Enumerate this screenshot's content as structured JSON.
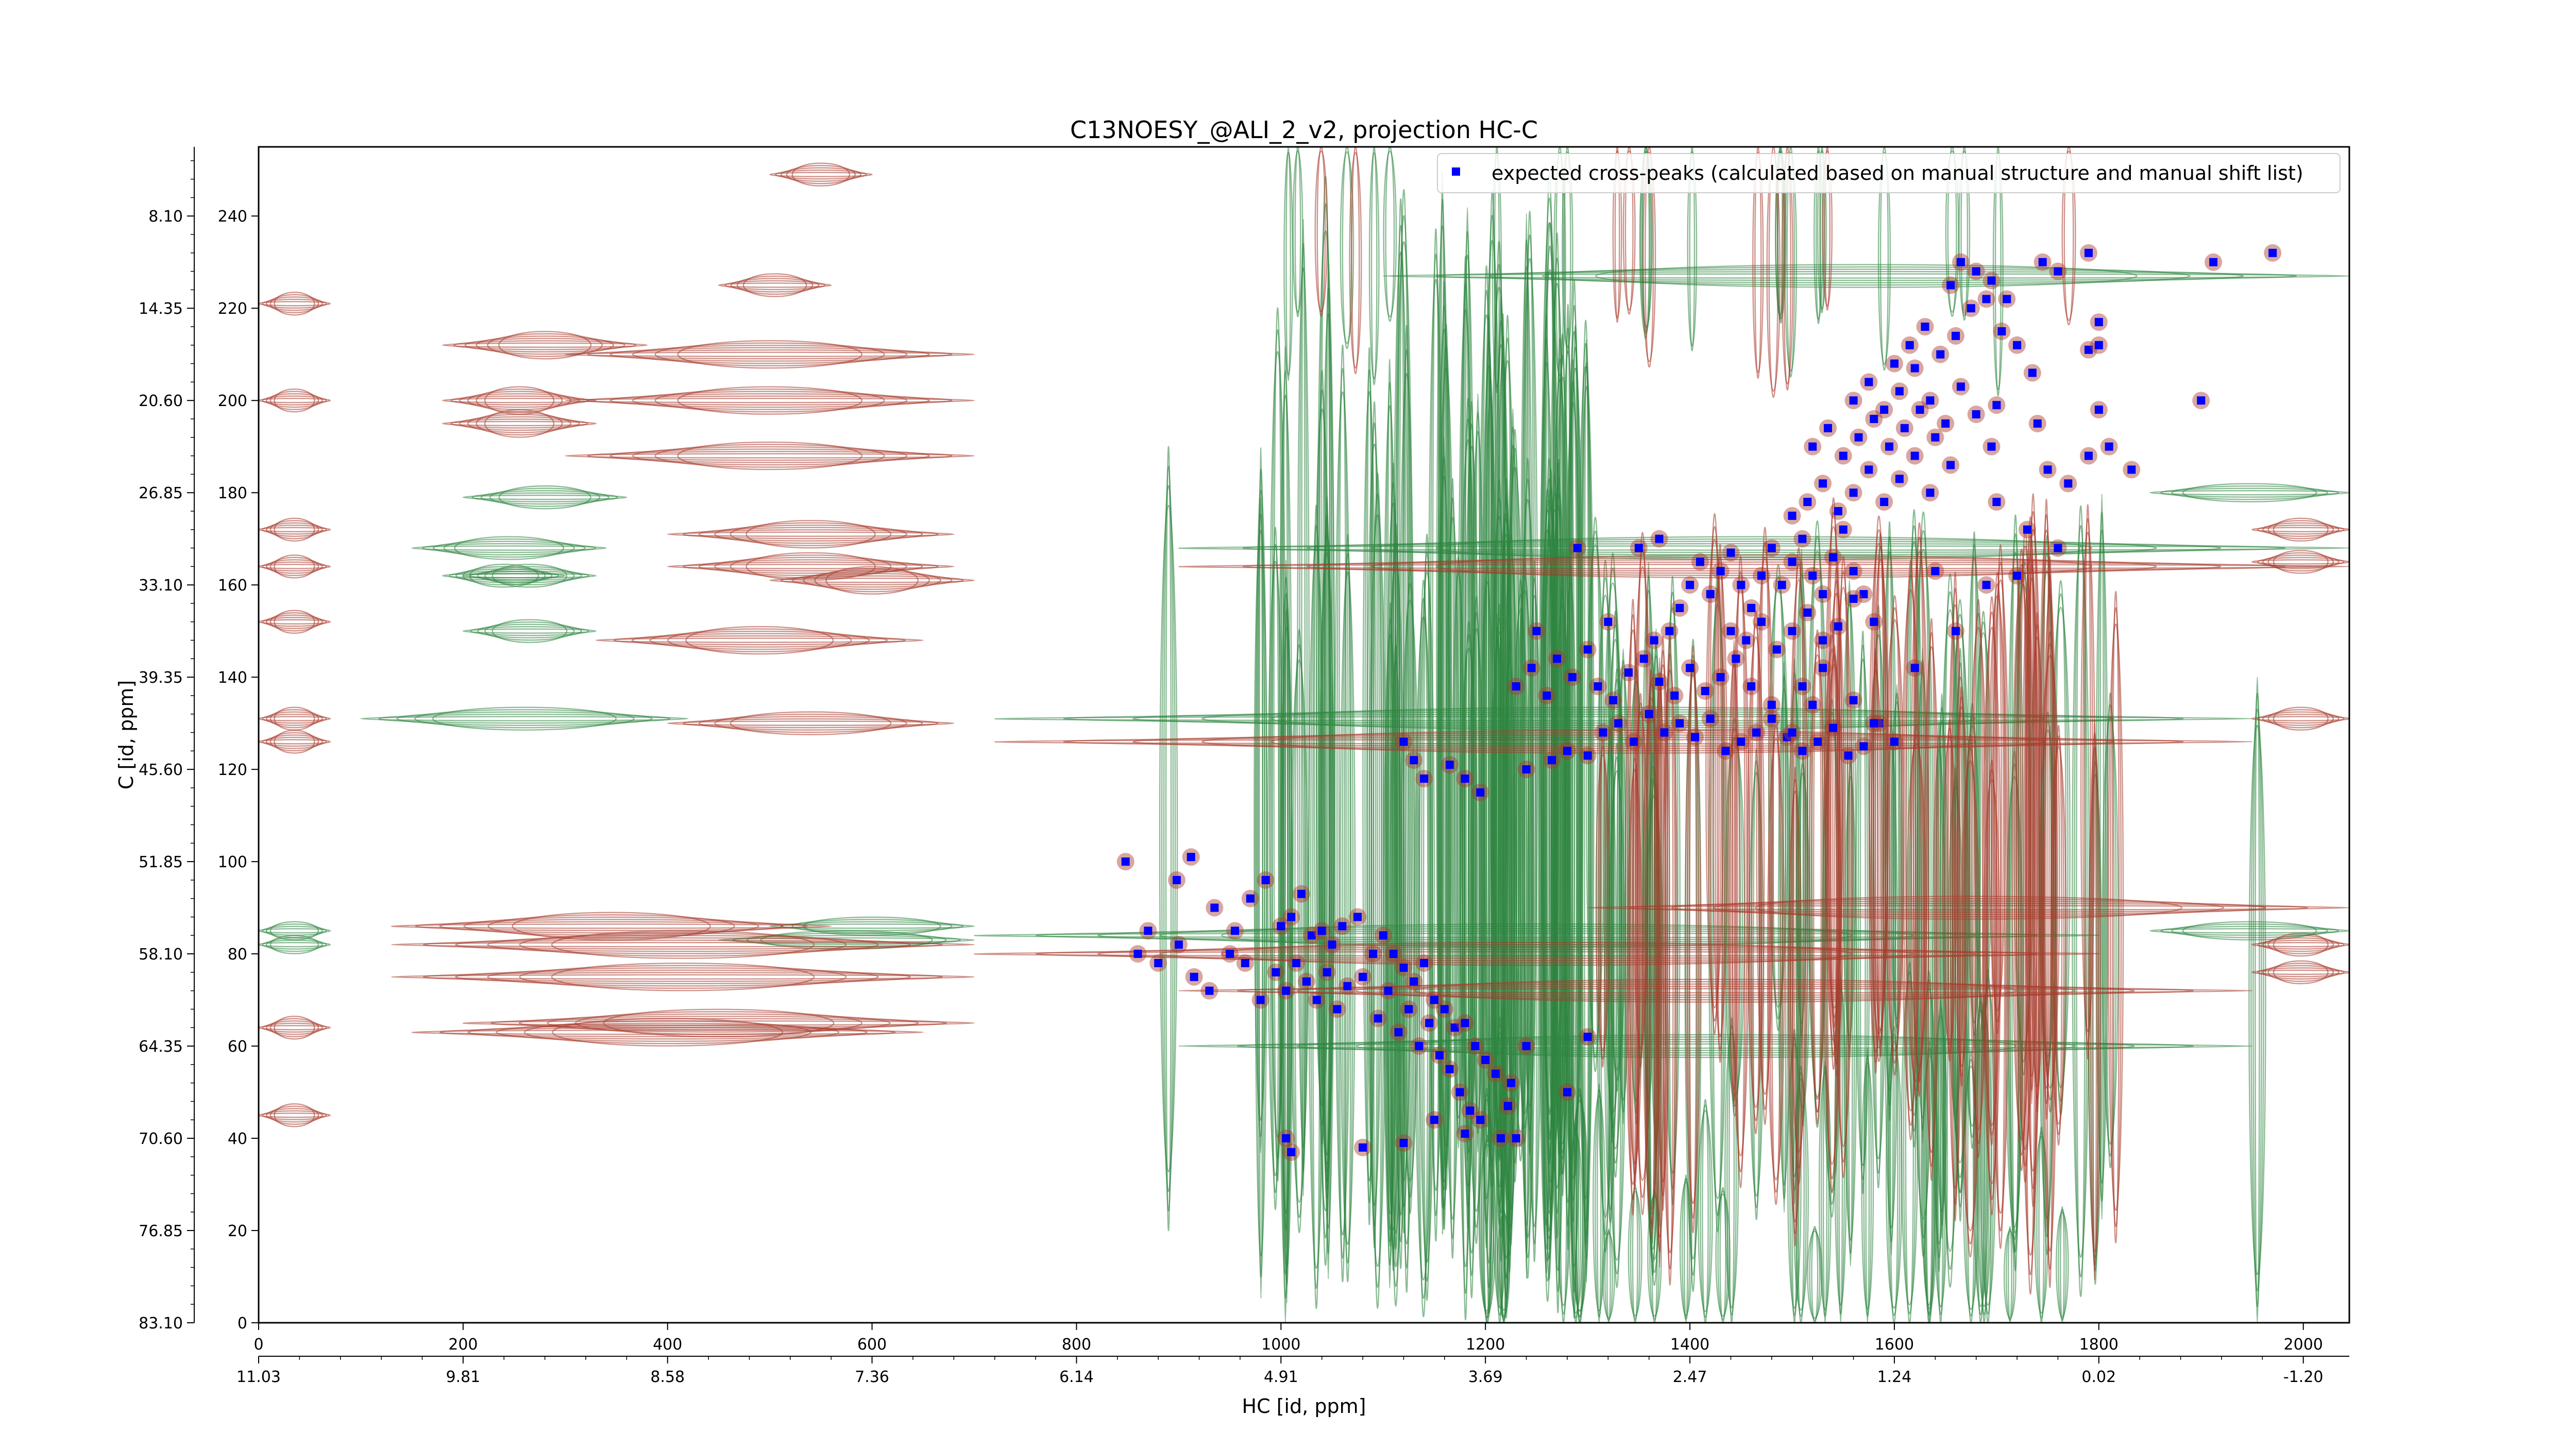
{
  "chart_data": {
    "type": "scatter",
    "title": "C13NOESY_@ALI_2_v2, projection HC-C",
    "xlabel": "HC [id, ppm]",
    "ylabel": "C [id, ppm]",
    "x_index_ticks": [
      "0",
      "200",
      "400",
      "600",
      "800",
      "1000",
      "1200",
      "1400",
      "1600",
      "1800",
      "2000"
    ],
    "x_index_range": [
      0,
      2045
    ],
    "x_ppm_ticks": [
      "11.03",
      "9.81",
      "8.58",
      "7.36",
      "6.14",
      "4.91",
      "3.69",
      "2.47",
      "1.24",
      "0.02",
      "-1.20"
    ],
    "y_index_ticks": [
      "0",
      "20",
      "40",
      "60",
      "80",
      "100",
      "120",
      "140",
      "160",
      "180",
      "200",
      "220",
      "240"
    ],
    "y_index_range": [
      0,
      255
    ],
    "y_ppm_ticks": [
      "83.10",
      "76.85",
      "70.60",
      "64.35",
      "58.10",
      "51.85",
      "45.60",
      "39.35",
      "33.10",
      "26.85",
      "20.60",
      "14.35",
      "8.10"
    ],
    "legend": {
      "label": "expected cross-peaks (calculated based on manual structure and manual shift list)",
      "placement": "top-right",
      "marker_color": "#0000ff"
    },
    "contour_colors": {
      "positive": "#a83b2c",
      "negative": "#2e8540"
    },
    "series": [
      {
        "label": "expected cross-peaks (calculated based on manual structure and manual shift list)",
        "points": [
          [
            848,
            100
          ],
          [
            898,
            96
          ],
          [
            912,
            101
          ],
          [
            935,
            90
          ],
          [
            950,
            80
          ],
          [
            970,
            92
          ],
          [
            985,
            96
          ],
          [
            1000,
            86
          ],
          [
            1010,
            88
          ],
          [
            1020,
            93
          ],
          [
            1030,
            84
          ],
          [
            1040,
            85
          ],
          [
            1050,
            82
          ],
          [
            1060,
            86
          ],
          [
            1075,
            88
          ],
          [
            1090,
            80
          ],
          [
            1100,
            84
          ],
          [
            1110,
            80
          ],
          [
            1120,
            77
          ],
          [
            1130,
            74
          ],
          [
            1140,
            78
          ],
          [
            1150,
            70
          ],
          [
            1160,
            68
          ],
          [
            1170,
            64
          ],
          [
            1180,
            65
          ],
          [
            1190,
            60
          ],
          [
            1200,
            57
          ],
          [
            1210,
            54
          ],
          [
            1225,
            52
          ],
          [
            1240,
            60
          ],
          [
            860,
            80
          ],
          [
            870,
            85
          ],
          [
            880,
            78
          ],
          [
            900,
            82
          ],
          [
            915,
            75
          ],
          [
            930,
            72
          ],
          [
            955,
            85
          ],
          [
            965,
            78
          ],
          [
            980,
            70
          ],
          [
            995,
            76
          ],
          [
            1005,
            72
          ],
          [
            1015,
            78
          ],
          [
            1025,
            74
          ],
          [
            1035,
            70
          ],
          [
            1045,
            76
          ],
          [
            1055,
            68
          ],
          [
            1065,
            73
          ],
          [
            1080,
            75
          ],
          [
            1095,
            66
          ],
          [
            1105,
            72
          ],
          [
            1115,
            63
          ],
          [
            1125,
            68
          ],
          [
            1135,
            60
          ],
          [
            1145,
            65
          ],
          [
            1155,
            58
          ],
          [
            1165,
            55
          ],
          [
            1175,
            50
          ],
          [
            1185,
            46
          ],
          [
            1195,
            44
          ],
          [
            1215,
            40
          ],
          [
            1005,
            40
          ],
          [
            1010,
            37
          ],
          [
            1080,
            38
          ],
          [
            1120,
            39
          ],
          [
            1150,
            44
          ],
          [
            1180,
            41
          ],
          [
            1222,
            47
          ],
          [
            1230,
            40
          ],
          [
            1280,
            50
          ],
          [
            1300,
            62
          ],
          [
            1120,
            126
          ],
          [
            1130,
            122
          ],
          [
            1140,
            118
          ],
          [
            1165,
            121
          ],
          [
            1180,
            118
          ],
          [
            1195,
            115
          ],
          [
            1240,
            120
          ],
          [
            1265,
            122
          ],
          [
            1280,
            124
          ],
          [
            1300,
            123
          ],
          [
            1315,
            128
          ],
          [
            1330,
            130
          ],
          [
            1345,
            126
          ],
          [
            1360,
            132
          ],
          [
            1375,
            128
          ],
          [
            1390,
            130
          ],
          [
            1405,
            127
          ],
          [
            1420,
            131
          ],
          [
            1435,
            124
          ],
          [
            1450,
            126
          ],
          [
            1465,
            128
          ],
          [
            1480,
            131
          ],
          [
            1495,
            127
          ],
          [
            1510,
            124
          ],
          [
            1525,
            126
          ],
          [
            1540,
            129
          ],
          [
            1555,
            123
          ],
          [
            1570,
            125
          ],
          [
            1585,
            130
          ],
          [
            1600,
            126
          ],
          [
            1230,
            138
          ],
          [
            1245,
            142
          ],
          [
            1260,
            136
          ],
          [
            1270,
            144
          ],
          [
            1285,
            140
          ],
          [
            1300,
            146
          ],
          [
            1310,
            138
          ],
          [
            1325,
            135
          ],
          [
            1340,
            141
          ],
          [
            1355,
            144
          ],
          [
            1370,
            139
          ],
          [
            1385,
            136
          ],
          [
            1400,
            142
          ],
          [
            1415,
            137
          ],
          [
            1430,
            140
          ],
          [
            1445,
            144
          ],
          [
            1460,
            138
          ],
          [
            1480,
            134
          ],
          [
            1500,
            128
          ],
          [
            1520,
            134
          ],
          [
            1380,
            150
          ],
          [
            1390,
            155
          ],
          [
            1400,
            160
          ],
          [
            1410,
            165
          ],
          [
            1420,
            158
          ],
          [
            1430,
            163
          ],
          [
            1440,
            167
          ],
          [
            1450,
            160
          ],
          [
            1460,
            155
          ],
          [
            1470,
            162
          ],
          [
            1480,
            168
          ],
          [
            1490,
            160
          ],
          [
            1500,
            165
          ],
          [
            1510,
            170
          ],
          [
            1520,
            162
          ],
          [
            1530,
            158
          ],
          [
            1540,
            166
          ],
          [
            1550,
            172
          ],
          [
            1560,
            163
          ],
          [
            1570,
            158
          ],
          [
            1440,
            150
          ],
          [
            1455,
            148
          ],
          [
            1470,
            152
          ],
          [
            1485,
            146
          ],
          [
            1500,
            150
          ],
          [
            1515,
            154
          ],
          [
            1530,
            148
          ],
          [
            1545,
            151
          ],
          [
            1560,
            157
          ],
          [
            1580,
            152
          ],
          [
            1500,
            175
          ],
          [
            1515,
            178
          ],
          [
            1530,
            182
          ],
          [
            1545,
            176
          ],
          [
            1560,
            180
          ],
          [
            1575,
            185
          ],
          [
            1590,
            178
          ],
          [
            1605,
            183
          ],
          [
            1620,
            188
          ],
          [
            1635,
            180
          ],
          [
            1520,
            190
          ],
          [
            1535,
            194
          ],
          [
            1550,
            188
          ],
          [
            1565,
            192
          ],
          [
            1580,
            196
          ],
          [
            1595,
            190
          ],
          [
            1610,
            194
          ],
          [
            1625,
            198
          ],
          [
            1640,
            192
          ],
          [
            1655,
            186
          ],
          [
            1560,
            200
          ],
          [
            1575,
            204
          ],
          [
            1590,
            198
          ],
          [
            1605,
            202
          ],
          [
            1620,
            207
          ],
          [
            1635,
            200
          ],
          [
            1650,
            195
          ],
          [
            1665,
            203
          ],
          [
            1680,
            197
          ],
          [
            1695,
            190
          ],
          [
            1600,
            208
          ],
          [
            1615,
            212
          ],
          [
            1630,
            216
          ],
          [
            1645,
            210
          ],
          [
            1660,
            214
          ],
          [
            1675,
            220
          ],
          [
            1690,
            222
          ],
          [
            1705,
            215
          ],
          [
            1720,
            212
          ],
          [
            1735,
            206
          ],
          [
            1655,
            225
          ],
          [
            1665,
            230
          ],
          [
            1680,
            228
          ],
          [
            1695,
            226
          ],
          [
            1710,
            222
          ],
          [
            1745,
            230
          ],
          [
            1760,
            228
          ],
          [
            1790,
            232
          ],
          [
            1700,
            199
          ],
          [
            1740,
            195
          ],
          [
            1750,
            185
          ],
          [
            1770,
            182
          ],
          [
            1790,
            188
          ],
          [
            1800,
            198
          ],
          [
            1810,
            190
          ],
          [
            1832,
            185
          ],
          [
            1760,
            168
          ],
          [
            1730,
            172
          ],
          [
            1700,
            178
          ],
          [
            1720,
            162
          ],
          [
            1900,
            200
          ],
          [
            1912,
            230
          ],
          [
            1970,
            232
          ],
          [
            1790,
            211
          ],
          [
            1800,
            212
          ],
          [
            1800,
            217
          ],
          [
            1690,
            160
          ],
          [
            1640,
            163
          ],
          [
            1660,
            150
          ],
          [
            1620,
            142
          ],
          [
            1350,
            168
          ],
          [
            1370,
            170
          ],
          [
            1290,
            168
          ],
          [
            1250,
            150
          ],
          [
            1320,
            152
          ],
          [
            1365,
            148
          ],
          [
            1510,
            138
          ],
          [
            1530,
            142
          ],
          [
            1560,
            135
          ],
          [
            1580,
            130
          ]
        ]
      }
    ]
  }
}
